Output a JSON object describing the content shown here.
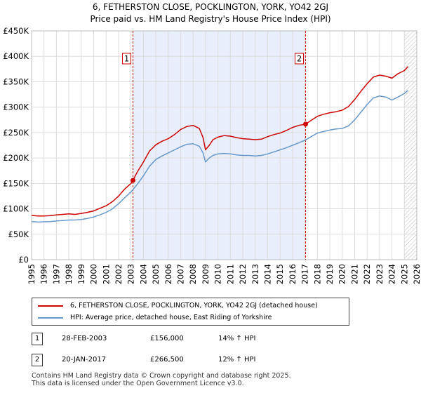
{
  "header": {
    "title_line1": "6, FETHERSTON CLOSE, POCKLINGTON, YORK, YO42 2GJ",
    "title_line2": "Price paid vs. HM Land Registry's House Price Index (HPI)"
  },
  "chart_data": {
    "type": "line",
    "title": "6, FETHERSTON CLOSE, POCKLINGTON, YORK, YO42 2GJ — Price paid vs. HM Land Registry's House Price Index (HPI)",
    "xlim": [
      1995,
      2026
    ],
    "ylim": [
      0,
      450000
    ],
    "x_ticks": [
      "1995",
      "1996",
      "1997",
      "1998",
      "1999",
      "2000",
      "2001",
      "2002",
      "2003",
      "2004",
      "2005",
      "2006",
      "2007",
      "2008",
      "2009",
      "2010",
      "2011",
      "2012",
      "2013",
      "2014",
      "2015",
      "2016",
      "2017",
      "2018",
      "2019",
      "2020",
      "2021",
      "2022",
      "2023",
      "2024",
      "2025",
      "2026"
    ],
    "y_ticks": [
      {
        "value": 0,
        "label": "£0"
      },
      {
        "value": 50000,
        "label": "£50K"
      },
      {
        "value": 100000,
        "label": "£100K"
      },
      {
        "value": 150000,
        "label": "£150K"
      },
      {
        "value": 200000,
        "label": "£200K"
      },
      {
        "value": 250000,
        "label": "£250K"
      },
      {
        "value": 300000,
        "label": "£300K"
      },
      {
        "value": 350000,
        "label": "£350K"
      },
      {
        "value": 400000,
        "label": "£400K"
      },
      {
        "value": 450000,
        "label": "£450K"
      }
    ],
    "grid": true,
    "shaded_region": {
      "from": 2003.16,
      "to": 2017.05
    },
    "forecast_from": 2025.0,
    "series": [
      {
        "name": "6, FETHERSTON CLOSE, POCKLINGTON, YORK, YO42 2GJ (detached house)",
        "color": "#cc0000",
        "x": [
          1995.0,
          1995.5,
          1996.0,
          1996.5,
          1997.0,
          1997.5,
          1998.0,
          1998.5,
          1999.0,
          1999.5,
          2000.0,
          2000.5,
          2001.0,
          2001.5,
          2002.0,
          2002.5,
          2003.0,
          2003.16,
          2003.5,
          2004.0,
          2004.5,
          2005.0,
          2005.5,
          2006.0,
          2006.5,
          2007.0,
          2007.5,
          2008.0,
          2008.5,
          2008.8,
          2009.0,
          2009.3,
          2009.6,
          2010.0,
          2010.5,
          2011.0,
          2011.5,
          2012.0,
          2012.5,
          2013.0,
          2013.5,
          2014.0,
          2014.5,
          2015.0,
          2015.5,
          2016.0,
          2016.5,
          2017.05,
          2017.5,
          2018.0,
          2018.5,
          2019.0,
          2019.5,
          2020.0,
          2020.5,
          2021.0,
          2021.5,
          2022.0,
          2022.5,
          2023.0,
          2023.5,
          2024.0,
          2024.5,
          2025.0,
          2025.3
        ],
        "values": [
          87000,
          86000,
          86000,
          86500,
          88000,
          89000,
          90000,
          89000,
          91000,
          93000,
          96000,
          101000,
          106000,
          114000,
          125000,
          139000,
          150000,
          156000,
          172000,
          192000,
          214000,
          226000,
          233000,
          238000,
          246000,
          256000,
          262000,
          264000,
          258000,
          240000,
          216000,
          225000,
          236000,
          241000,
          244000,
          243000,
          240000,
          238000,
          237000,
          236000,
          237000,
          242000,
          246000,
          249000,
          254000,
          260000,
          264000,
          266500,
          274000,
          282000,
          286000,
          289000,
          291000,
          294000,
          301000,
          315000,
          331000,
          346000,
          359000,
          363000,
          361000,
          357000,
          366000,
          372000,
          380000
        ]
      },
      {
        "name": "HPI: Average price, detached house, East Riding of Yorkshire",
        "color": "#6699cc",
        "x": [
          1995.0,
          1995.5,
          1996.0,
          1996.5,
          1997.0,
          1997.5,
          1998.0,
          1998.5,
          1999.0,
          1999.5,
          2000.0,
          2000.5,
          2001.0,
          2001.5,
          2002.0,
          2002.5,
          2003.0,
          2003.5,
          2004.0,
          2004.5,
          2005.0,
          2005.5,
          2006.0,
          2006.5,
          2007.0,
          2007.5,
          2008.0,
          2008.5,
          2008.8,
          2009.0,
          2009.3,
          2009.6,
          2010.0,
          2010.5,
          2011.0,
          2011.5,
          2012.0,
          2012.5,
          2013.0,
          2013.5,
          2014.0,
          2014.5,
          2015.0,
          2015.5,
          2016.0,
          2016.5,
          2017.0,
          2017.5,
          2018.0,
          2018.5,
          2019.0,
          2019.5,
          2020.0,
          2020.5,
          2021.0,
          2021.5,
          2022.0,
          2022.5,
          2023.0,
          2023.5,
          2024.0,
          2024.5,
          2025.0,
          2025.3
        ],
        "values": [
          75000,
          74000,
          74500,
          75000,
          76000,
          77000,
          78000,
          78000,
          79000,
          81000,
          84000,
          88000,
          93000,
          100000,
          110000,
          122000,
          133000,
          148000,
          165000,
          184000,
          197000,
          204000,
          210000,
          216000,
          222000,
          227000,
          228000,
          223000,
          210000,
          192000,
          200000,
          205000,
          208000,
          209000,
          208000,
          206000,
          205000,
          205000,
          204000,
          205000,
          208000,
          212000,
          216000,
          220000,
          225000,
          230000,
          235000,
          242000,
          249000,
          252000,
          255000,
          257000,
          258000,
          263000,
          275000,
          290000,
          305000,
          318000,
          322000,
          320000,
          314000,
          320000,
          327000,
          333000
        ]
      }
    ],
    "sales": [
      {
        "label": "1",
        "x": 2003.16,
        "value": 156000,
        "date": "28-FEB-2003",
        "price": "£156,000",
        "hpi": "14% ↑ HPI"
      },
      {
        "label": "2",
        "x": 2017.05,
        "value": 266500,
        "date": "20-JAN-2017",
        "price": "£266,500",
        "hpi": "12% ↑ HPI"
      }
    ]
  },
  "legend": {
    "property_label": "6, FETHERSTON CLOSE, POCKLINGTON, YORK, YO42 2GJ (detached house)",
    "hpi_label": "HPI: Average price, detached house, East Riding of Yorkshire"
  },
  "footer": {
    "line1": "Contains HM Land Registry data © Crown copyright and database right 2025.",
    "line2": "This data is licensed under the Open Government Licence v3.0."
  }
}
